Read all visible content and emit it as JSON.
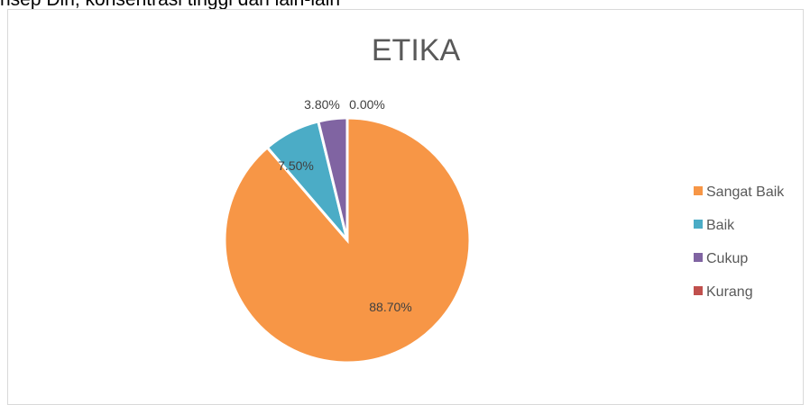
{
  "page": {
    "top_text": "nsep Diri, konsentrasi tinggi dan lain-lain"
  },
  "chart_data": {
    "type": "pie",
    "title": "ETIKA",
    "categories": [
      "Sangat Baik",
      "Baik",
      "Cukup",
      "Kurang"
    ],
    "values": [
      88.7,
      7.5,
      3.8,
      0.0
    ],
    "labels": [
      "88.70%",
      "7.50%",
      "3.80%",
      "0.00%"
    ],
    "colors": [
      "#f79646",
      "#4bacc6",
      "#8064a2",
      "#c0504d"
    ],
    "legend_placement": "right"
  }
}
